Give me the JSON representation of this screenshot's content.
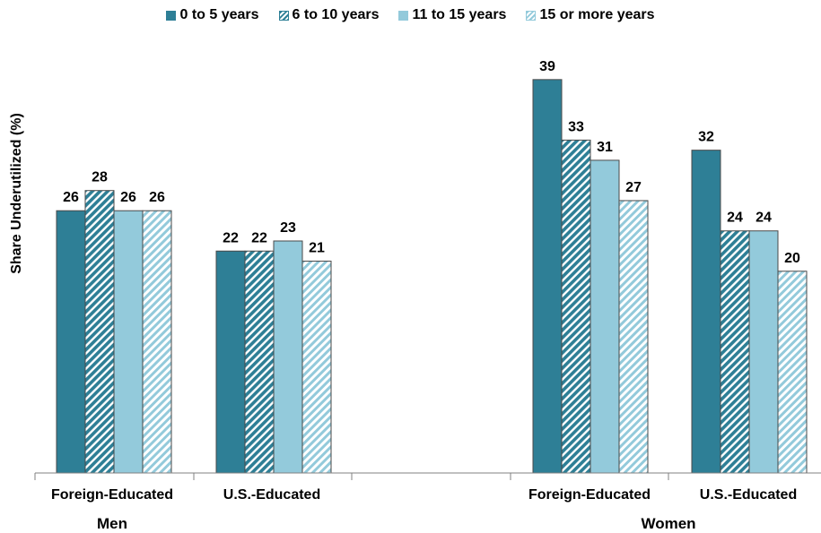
{
  "chart_data": {
    "type": "bar",
    "title": "",
    "ylabel": "Share Underutilized (%)",
    "ylim": [
      0,
      46
    ],
    "grid": false,
    "legend_position": "top",
    "groups": [
      {
        "name": "Men",
        "categories": [
          "Foreign-Educated",
          "U.S.-Educated"
        ]
      },
      {
        "name": "Women",
        "categories": [
          "Foreign-Educated",
          "U.S.-Educated"
        ]
      }
    ],
    "series": [
      {
        "name": "0 to 5 years",
        "values": [
          26,
          22,
          39,
          32
        ],
        "color": "#2e7f96",
        "pattern": "solid"
      },
      {
        "name": "6 to 10 years",
        "values": [
          28,
          22,
          33,
          24
        ],
        "color": "#2e7f96",
        "pattern": "hatch"
      },
      {
        "name": "11 to 15 years",
        "values": [
          26,
          23,
          31,
          24
        ],
        "color": "#93cadb",
        "pattern": "solid"
      },
      {
        "name": "15 or more years",
        "values": [
          26,
          21,
          27,
          20
        ],
        "color": "#93cadb",
        "pattern": "hatch"
      }
    ]
  }
}
